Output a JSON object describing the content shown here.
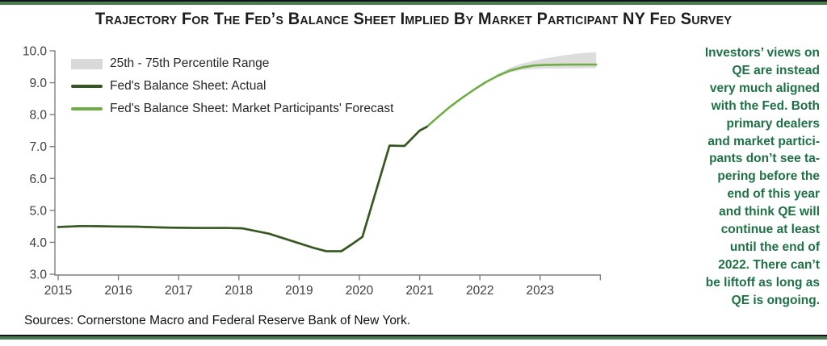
{
  "title": "Trajectory For The Fed’s Balance Sheet Implied By Market Participant NY Fed Survey",
  "sources": "Sources: Cornerstone Macro and Federal Reserve Bank of New York.",
  "sidebar": {
    "lines": [
      "Investors’ views on",
      "QE are instead",
      "very much aligned",
      "with the Fed.  Both",
      "primary dealers",
      "and market partici-",
      "pants don’t see ta-",
      "pering before the",
      "end of this year",
      "and think QE will",
      "continue at least",
      "until the end of",
      "2022.  There can’t",
      "be liftoff as long as",
      "QE is ongoing."
    ]
  },
  "colors": {
    "actual": "#375623",
    "forecast": "#70AD47",
    "band": "#D9D9D9",
    "border_green": "#4a7b52",
    "sidebar_text": "#1f7145",
    "axis": "#7f7f7f",
    "tick_label": "#3d3d3d"
  },
  "chart_data": {
    "type": "line",
    "title": "Trajectory For The Fed's Balance Sheet Implied By Market Participant NY Fed Survey",
    "xlabel": "",
    "ylabel": "",
    "xlim": [
      2015,
      2024
    ],
    "ylim": [
      3.0,
      10.0
    ],
    "grid": false,
    "legend_position": "top-left",
    "legend": [
      {
        "label": "25th - 75th Percentile Range",
        "type": "band"
      },
      {
        "label": "Fed's Balance Sheet: Actual",
        "type": "line"
      },
      {
        "label": "Fed's Balance Sheet: Market Participants' Forecast",
        "type": "line"
      }
    ],
    "y_ticks": [
      {
        "v": 10.0,
        "label": "10.0"
      },
      {
        "v": 9.0,
        "label": "9.0"
      },
      {
        "v": 8.0,
        "label": "8.0"
      },
      {
        "v": 7.0,
        "label": "7.0"
      },
      {
        "v": 6.0,
        "label": "6.0"
      },
      {
        "v": 5.0,
        "label": "5.0"
      },
      {
        "v": 4.0,
        "label": "4.0"
      },
      {
        "v": 3.0,
        "label": "3.0"
      }
    ],
    "x_ticks": [
      {
        "t": 2015,
        "label": "2015"
      },
      {
        "t": 2016,
        "label": "2016"
      },
      {
        "t": 2017,
        "label": "2017"
      },
      {
        "t": 2018,
        "label": "2018"
      },
      {
        "t": 2019,
        "label": "2019"
      },
      {
        "t": 2020,
        "label": "2020"
      },
      {
        "t": 2021,
        "label": "2021"
      },
      {
        "t": 2022,
        "label": "2022"
      },
      {
        "t": 2023,
        "label": "2023"
      },
      {
        "t": 2024,
        "label": ""
      }
    ],
    "series": [
      {
        "name": "Fed's Balance Sheet: Market Participants' Forecast",
        "color_key": "forecast",
        "points": [
          [
            2015.0,
            4.48
          ],
          [
            2015.4,
            4.51
          ],
          [
            2015.8,
            4.5
          ],
          [
            2016.3,
            4.49
          ],
          [
            2016.8,
            4.46
          ],
          [
            2017.3,
            4.45
          ],
          [
            2017.8,
            4.45
          ],
          [
            2018.05,
            4.44
          ],
          [
            2018.5,
            4.27
          ],
          [
            2019.0,
            3.97
          ],
          [
            2019.25,
            3.82
          ],
          [
            2019.45,
            3.72
          ],
          [
            2019.7,
            3.72
          ],
          [
            2019.9,
            3.97
          ],
          [
            2020.05,
            4.17
          ],
          [
            2020.5,
            7.03
          ],
          [
            2020.75,
            7.02
          ],
          [
            2021.0,
            7.5
          ],
          [
            2021.12,
            7.62
          ],
          [
            2021.3,
            7.92
          ],
          [
            2021.5,
            8.24
          ],
          [
            2021.7,
            8.52
          ],
          [
            2021.9,
            8.78
          ],
          [
            2022.1,
            9.02
          ],
          [
            2022.3,
            9.22
          ],
          [
            2022.5,
            9.38
          ],
          [
            2022.7,
            9.48
          ],
          [
            2022.9,
            9.54
          ],
          [
            2023.1,
            9.56
          ],
          [
            2023.5,
            9.57
          ],
          [
            2023.93,
            9.57
          ]
        ]
      },
      {
        "name": "Fed's Balance Sheet: Actual",
        "color_key": "actual",
        "points": [
          [
            2015.0,
            4.48
          ],
          [
            2015.4,
            4.51
          ],
          [
            2015.8,
            4.5
          ],
          [
            2016.3,
            4.49
          ],
          [
            2016.8,
            4.46
          ],
          [
            2017.3,
            4.45
          ],
          [
            2017.8,
            4.45
          ],
          [
            2018.05,
            4.44
          ],
          [
            2018.5,
            4.27
          ],
          [
            2019.0,
            3.97
          ],
          [
            2019.25,
            3.82
          ],
          [
            2019.45,
            3.72
          ],
          [
            2019.7,
            3.72
          ],
          [
            2019.9,
            3.97
          ],
          [
            2020.05,
            4.17
          ],
          [
            2020.5,
            7.03
          ],
          [
            2020.75,
            7.02
          ],
          [
            2021.0,
            7.5
          ],
          [
            2021.12,
            7.62
          ]
        ]
      }
    ],
    "band": {
      "name": "25th - 75th Percentile Range",
      "points": [
        {
          "t": 2022.2,
          "top": 9.15,
          "bottom": 9.1
        },
        {
          "t": 2022.3,
          "top": 9.27,
          "bottom": 9.19
        },
        {
          "t": 2022.5,
          "top": 9.47,
          "bottom": 9.33
        },
        {
          "t": 2022.7,
          "top": 9.6,
          "bottom": 9.4
        },
        {
          "t": 2022.9,
          "top": 9.69,
          "bottom": 9.43
        },
        {
          "t": 2023.1,
          "top": 9.77,
          "bottom": 9.44
        },
        {
          "t": 2023.4,
          "top": 9.86,
          "bottom": 9.45
        },
        {
          "t": 2023.7,
          "top": 9.93,
          "bottom": 9.45
        },
        {
          "t": 2023.93,
          "top": 9.96,
          "bottom": 9.46
        }
      ]
    }
  }
}
